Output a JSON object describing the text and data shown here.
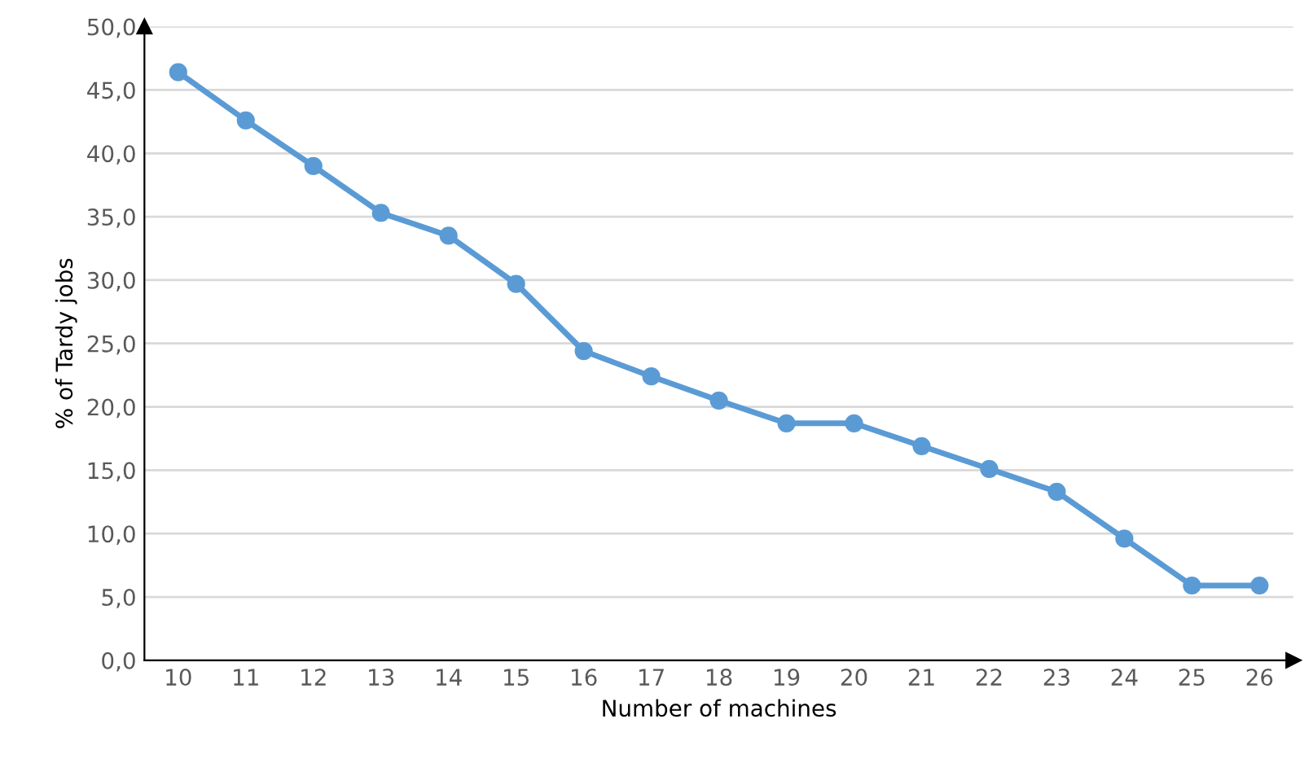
{
  "chart_data": {
    "type": "line",
    "xlabel": "Number of machines",
    "ylabel": "% of Tardy jobs",
    "categories": [
      "10",
      "11",
      "12",
      "13",
      "14",
      "15",
      "16",
      "17",
      "18",
      "19",
      "20",
      "21",
      "22",
      "23",
      "24",
      "25",
      "26"
    ],
    "series": [
      {
        "color": "#5b9bd5",
        "values": [
          46.4,
          42.6,
          39.0,
          35.3,
          33.5,
          29.7,
          24.4,
          22.4,
          20.5,
          18.7,
          18.7,
          16.9,
          15.1,
          13.3,
          9.6,
          5.9,
          5.9
        ]
      }
    ],
    "ylim": [
      0,
      50
    ],
    "yticks": [
      {
        "value": 0,
        "label": "0,0"
      },
      {
        "value": 5,
        "label": "5,0"
      },
      {
        "value": 10,
        "label": "10,0"
      },
      {
        "value": 15,
        "label": "15,0"
      },
      {
        "value": 20,
        "label": "20,0"
      },
      {
        "value": 25,
        "label": "25,0"
      },
      {
        "value": 30,
        "label": "30,0"
      },
      {
        "value": 35,
        "label": "35,0"
      },
      {
        "value": 40,
        "label": "40,0"
      },
      {
        "value": 45,
        "label": "45,0"
      },
      {
        "value": 50,
        "label": "50,0"
      }
    ],
    "grid": "y",
    "marker": "circle",
    "line_style": "solid"
  }
}
